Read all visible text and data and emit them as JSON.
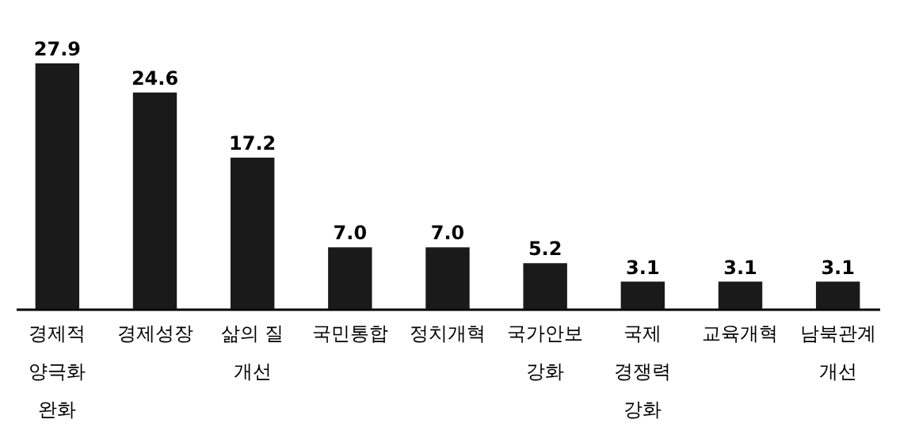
{
  "chart_data": {
    "type": "bar",
    "categories": [
      "경제적\n양극화\n완화",
      "경제성장",
      "삶의 질\n개선",
      "국민통합",
      "정치개혁",
      "국가안보\n강화",
      "국제\n경쟁력\n강화",
      "교육개혁",
      "남북관계\n개선"
    ],
    "values": [
      27.9,
      24.6,
      17.2,
      7.0,
      7.0,
      5.2,
      3.1,
      3.1,
      3.1
    ],
    "value_labels": [
      "27.9",
      "24.6",
      "17.2",
      "7.0",
      "7.0",
      "5.2",
      "3.1",
      "3.1",
      "3.1"
    ],
    "color": "#1a1a1a",
    "grid": false
  }
}
